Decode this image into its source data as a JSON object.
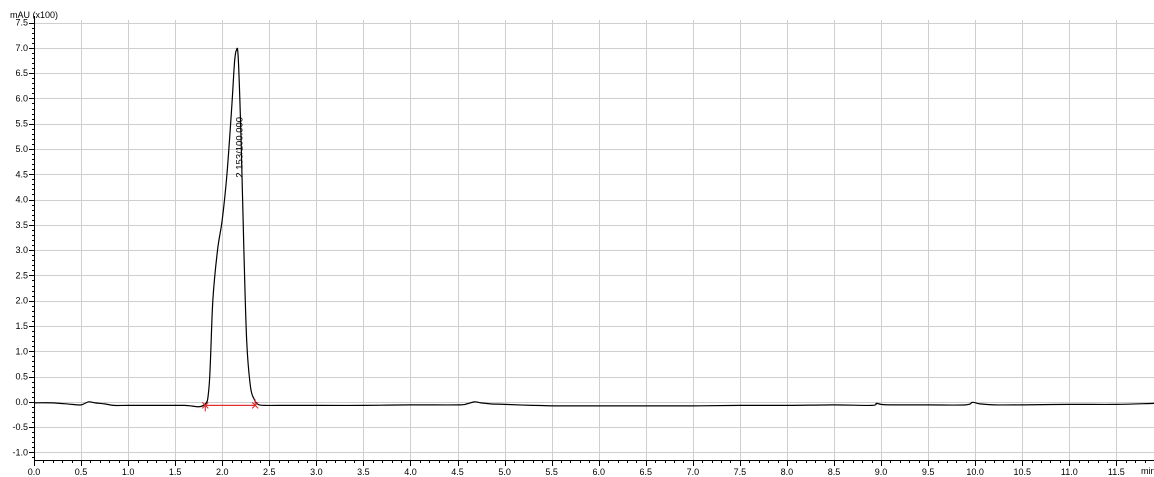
{
  "chart_data": {
    "type": "line",
    "title": "",
    "xlabel": "",
    "ylabel": "",
    "y_unit_label": "mAU (x100)",
    "x_unit_label": "min",
    "xlim": [
      0.0,
      11.9
    ],
    "ylim": [
      -1.15,
      7.55
    ],
    "x_ticks": [
      0.0,
      0.5,
      1.0,
      1.5,
      2.0,
      2.5,
      3.0,
      3.5,
      4.0,
      4.5,
      5.0,
      5.5,
      6.0,
      6.5,
      7.0,
      7.5,
      8.0,
      8.5,
      9.0,
      9.5,
      10.0,
      10.5,
      11.0,
      11.5
    ],
    "x_tick_labels": [
      "0.0",
      "0.5",
      "1.0",
      "1.5",
      "2.0",
      "2.5",
      "3.0",
      "3.5",
      "4.0",
      "4.5",
      "5.0",
      "5.5",
      "6.0",
      "6.5",
      "7.0",
      "7.5",
      "8.0",
      "8.5",
      "9.0",
      "9.5",
      "10.0",
      "10.5",
      "11.0",
      "11.5"
    ],
    "y_ticks": [
      -1.0,
      -0.5,
      0.0,
      0.5,
      1.0,
      1.5,
      2.0,
      2.5,
      3.0,
      3.5,
      4.0,
      4.5,
      5.0,
      5.5,
      6.0,
      6.5,
      7.0,
      7.5
    ],
    "y_tick_labels": [
      "-1.0",
      "-0.5",
      "0.0",
      "0.5",
      "1.0",
      "1.5",
      "2.0",
      "2.5",
      "3.0",
      "3.5",
      "4.0",
      "4.5",
      "5.0",
      "5.5",
      "6.0",
      "6.5",
      "7.0",
      "7.5"
    ],
    "grid": true,
    "series": [
      {
        "x": [
          0.0,
          0.2,
          0.4,
          0.5,
          0.58,
          0.65,
          0.75,
          0.85,
          1.0,
          1.3,
          1.6,
          1.8,
          1.86,
          1.9,
          1.95,
          2.0,
          2.05,
          2.1,
          2.13,
          2.15,
          2.17,
          2.2,
          2.23,
          2.26,
          2.3,
          2.34,
          2.38,
          2.45,
          2.6,
          3.0,
          3.5,
          4.0,
          4.5,
          4.6,
          4.68,
          4.75,
          4.85,
          5.0,
          5.3,
          5.6,
          6.0,
          6.5,
          7.0,
          7.5,
          8.0,
          8.5,
          8.9,
          8.95,
          9.0,
          9.1,
          9.5,
          9.9,
          9.97,
          10.05,
          10.2,
          10.5,
          11.0,
          11.5,
          11.9
        ],
        "y": [
          -0.02,
          -0.02,
          -0.05,
          -0.06,
          0.0,
          -0.02,
          -0.04,
          -0.07,
          -0.07,
          -0.07,
          -0.07,
          -0.07,
          0.3,
          2.0,
          3.0,
          3.6,
          4.5,
          5.8,
          6.7,
          6.95,
          6.8,
          5.2,
          3.0,
          1.2,
          0.3,
          0.05,
          -0.05,
          -0.07,
          -0.07,
          -0.07,
          -0.07,
          -0.06,
          -0.06,
          -0.04,
          0.0,
          -0.02,
          -0.04,
          -0.05,
          -0.07,
          -0.08,
          -0.08,
          -0.08,
          -0.08,
          -0.07,
          -0.07,
          -0.06,
          -0.07,
          -0.03,
          -0.05,
          -0.06,
          -0.06,
          -0.06,
          -0.01,
          -0.04,
          -0.06,
          -0.06,
          -0.05,
          -0.05,
          -0.03
        ]
      }
    ],
    "peak_baseline": {
      "x_start": 1.82,
      "x_end": 2.35,
      "y": -0.07
    },
    "peak_annotation": {
      "x": 2.153,
      "y": 6.9,
      "text": "2.153/100.000"
    }
  }
}
